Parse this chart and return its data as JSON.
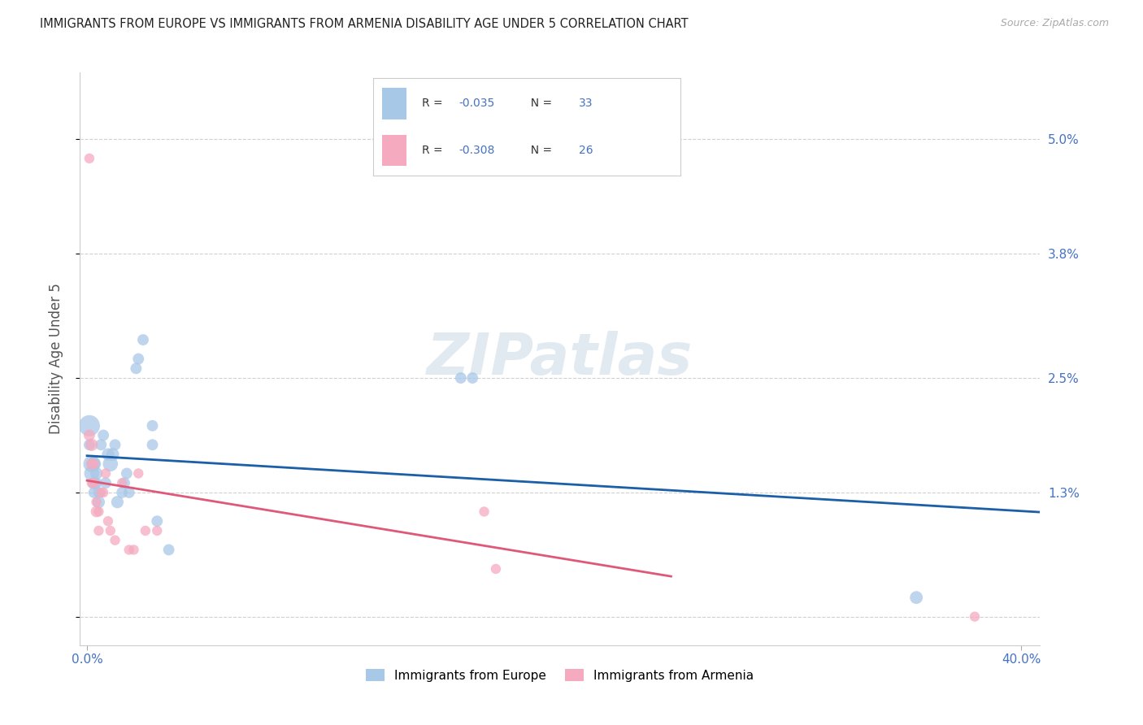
{
  "title": "IMMIGRANTS FROM EUROPE VS IMMIGRANTS FROM ARMENIA DISABILITY AGE UNDER 5 CORRELATION CHART",
  "source": "Source: ZipAtlas.com",
  "ylabel": "Disability Age Under 5",
  "xlim": [
    -0.003,
    0.408
  ],
  "ylim": [
    -0.003,
    0.057
  ],
  "yticks": [
    0.0,
    0.013,
    0.025,
    0.038,
    0.05
  ],
  "ytick_labels": [
    "",
    "1.3%",
    "2.5%",
    "3.8%",
    "5.0%"
  ],
  "xtick_positions": [
    0.0,
    0.4
  ],
  "xtick_labels": [
    "0.0%",
    "40.0%"
  ],
  "r_europe": -0.035,
  "n_europe": 33,
  "r_armenia": -0.308,
  "n_armenia": 26,
  "color_europe": "#a8c8e8",
  "color_armenia": "#f5aabf",
  "line_color_europe": "#1a5fa8",
  "line_color_armenia": "#e05878",
  "grid_color": "#d0d0d0",
  "axis_color": "#4472c4",
  "title_color": "#222222",
  "legend_r_color": "#4472c4",
  "legend_n_color": "#4472c4",
  "legend_text_color": "#333333",
  "europe_x": [
    0.001,
    0.001,
    0.002,
    0.002,
    0.003,
    0.003,
    0.003,
    0.004,
    0.004,
    0.005,
    0.005,
    0.006,
    0.007,
    0.008,
    0.009,
    0.01,
    0.011,
    0.012,
    0.013,
    0.015,
    0.016,
    0.017,
    0.018,
    0.021,
    0.022,
    0.024,
    0.028,
    0.028,
    0.03,
    0.035,
    0.16,
    0.165,
    0.355
  ],
  "europe_y": [
    0.02,
    0.018,
    0.016,
    0.015,
    0.016,
    0.014,
    0.013,
    0.014,
    0.015,
    0.013,
    0.012,
    0.018,
    0.019,
    0.014,
    0.017,
    0.016,
    0.017,
    0.018,
    0.012,
    0.013,
    0.014,
    0.015,
    0.013,
    0.026,
    0.027,
    0.029,
    0.018,
    0.02,
    0.01,
    0.007,
    0.025,
    0.025,
    0.002
  ],
  "europe_size": [
    350,
    100,
    220,
    180,
    150,
    130,
    100,
    100,
    120,
    100,
    120,
    100,
    100,
    100,
    120,
    180,
    130,
    100,
    120,
    100,
    100,
    100,
    100,
    100,
    100,
    100,
    100,
    100,
    100,
    100,
    100,
    100,
    130
  ],
  "armenia_x": [
    0.001,
    0.001,
    0.002,
    0.002,
    0.002,
    0.003,
    0.003,
    0.004,
    0.004,
    0.005,
    0.005,
    0.006,
    0.007,
    0.008,
    0.009,
    0.01,
    0.012,
    0.015,
    0.018,
    0.02,
    0.022,
    0.025,
    0.03,
    0.17,
    0.175,
    0.38
  ],
  "armenia_y": [
    0.048,
    0.019,
    0.018,
    0.016,
    0.014,
    0.016,
    0.014,
    0.012,
    0.011,
    0.011,
    0.009,
    0.013,
    0.013,
    0.015,
    0.01,
    0.009,
    0.008,
    0.014,
    0.007,
    0.007,
    0.015,
    0.009,
    0.009,
    0.011,
    0.005,
    0.0
  ],
  "armenia_size": [
    80,
    100,
    120,
    100,
    80,
    80,
    80,
    80,
    100,
    80,
    80,
    80,
    80,
    80,
    80,
    80,
    80,
    80,
    80,
    80,
    80,
    80,
    80,
    80,
    80,
    80
  ],
  "watermark": "ZIPatlas",
  "bottom_legend": [
    "Immigrants from Europe",
    "Immigrants from Armenia"
  ]
}
